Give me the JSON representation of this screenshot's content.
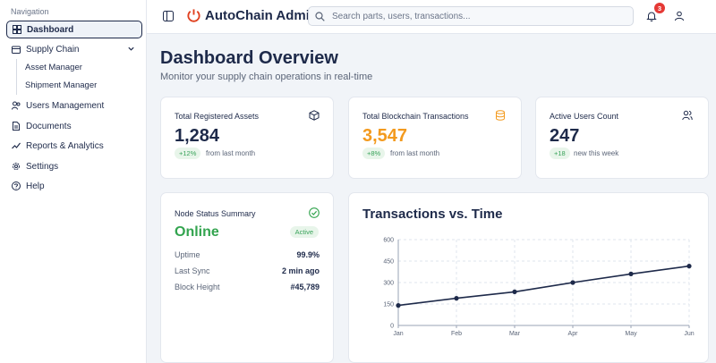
{
  "sidebar": {
    "heading": "Navigation",
    "items": [
      {
        "label": "Dashboard",
        "icon": "dashboard-icon"
      },
      {
        "label": "Supply Chain",
        "icon": "package-icon"
      },
      {
        "label": "Users Management",
        "icon": "users-icon"
      },
      {
        "label": "Documents",
        "icon": "document-icon"
      },
      {
        "label": "Reports & Analytics",
        "icon": "chart-icon"
      },
      {
        "label": "Settings",
        "icon": "gear-icon"
      },
      {
        "label": "Help",
        "icon": "help-icon"
      }
    ],
    "supply_chain_sub": [
      "Asset Manager",
      "Shipment Manager"
    ]
  },
  "header": {
    "app_title": "AutoChain Admin",
    "search_placeholder": "Search parts, users, transactions...",
    "notification_count": "3"
  },
  "main": {
    "title": "Dashboard Overview",
    "subtitle": "Monitor your supply chain operations in real-time",
    "stats": [
      {
        "label": "Total Registered Assets",
        "value": "1,284",
        "delta": "+12%",
        "note": "from last month",
        "icon": "box-icon",
        "value_color": "#1e2a4a"
      },
      {
        "label": "Total Blockchain Transactions",
        "value": "3,547",
        "delta": "+8%",
        "note": "from last month",
        "icon": "database-icon",
        "value_color": "#f39a1e"
      },
      {
        "label": "Active Users Count",
        "value": "247",
        "delta": "+18",
        "note": "new this week",
        "icon": "users-icon",
        "value_color": "#1e2a4a"
      }
    ],
    "node": {
      "title": "Node Status Summary",
      "status": "Online",
      "badge": "Active",
      "rows": [
        {
          "label": "Uptime",
          "value": "99.9%"
        },
        {
          "label": "Last Sync",
          "value": "2 min ago"
        },
        {
          "label": "Block Height",
          "value": "#45,789"
        }
      ]
    }
  },
  "colors": {
    "accent": "#1e2a4a",
    "logo": "#e0401f",
    "success": "#33a44f",
    "warning": "#f39a1e",
    "badge": "#e53935"
  },
  "chart_data": {
    "type": "line",
    "title": "Transactions vs. Time",
    "categories": [
      "Jan",
      "Feb",
      "Mar",
      "Apr",
      "May",
      "Jun"
    ],
    "values": [
      140,
      190,
      235,
      300,
      360,
      415
    ],
    "ylim": [
      0,
      600
    ],
    "yticks": [
      "0",
      "150",
      "300",
      "450",
      "600"
    ],
    "grid": true
  }
}
